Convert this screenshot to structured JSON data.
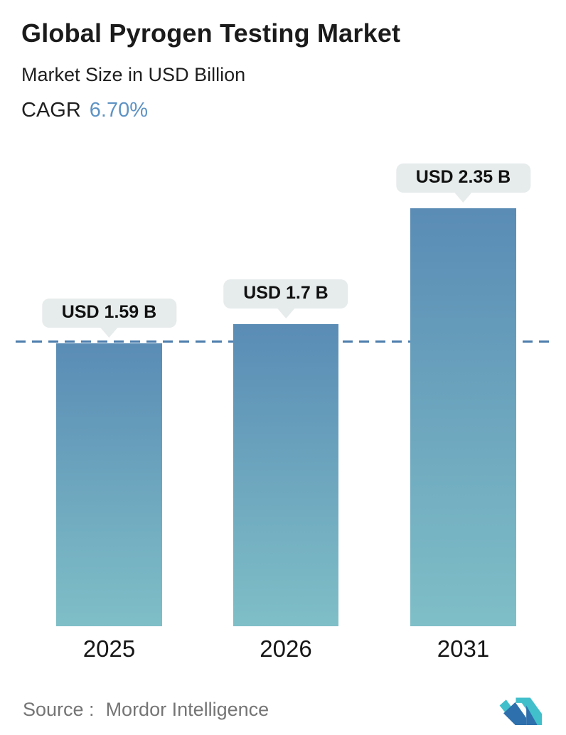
{
  "header": {
    "title": "Global Pyrogen Testing Market",
    "subtitle": "Market Size in USD Billion",
    "cagr_label": "CAGR",
    "cagr_value": "6.70%"
  },
  "chart_data": {
    "type": "bar",
    "title": "Global Pyrogen Testing Market",
    "unit": "USD Billion",
    "categories": [
      "2025",
      "2026",
      "2031"
    ],
    "values": [
      1.59,
      1.7,
      2.35
    ],
    "value_labels": [
      "USD 1.59 B",
      "USD 1.7 B",
      "USD 2.35 B"
    ],
    "cagr_percent": "6.70%",
    "reference_line": {
      "value": 1.59,
      "style": "dashed",
      "color": "#4c7dac"
    },
    "bar_gradient": {
      "top": "#5a8cb5",
      "bottom": "#7fbfc7"
    },
    "ylim": [
      0,
      2.6
    ],
    "grid": false,
    "legend": false,
    "callout_bg": "#e6ebeb"
  },
  "footer": {
    "source_label": "Source :",
    "source_value": "Mordor Intelligence",
    "logo": "mordor-intelligence-logo",
    "logo_colors": {
      "teal": "#41bfca",
      "blue": "#2e70ad"
    }
  },
  "colors": {
    "text": "#1b1b1b",
    "accent_blue": "#5e93c4",
    "source_text": "#757575"
  }
}
